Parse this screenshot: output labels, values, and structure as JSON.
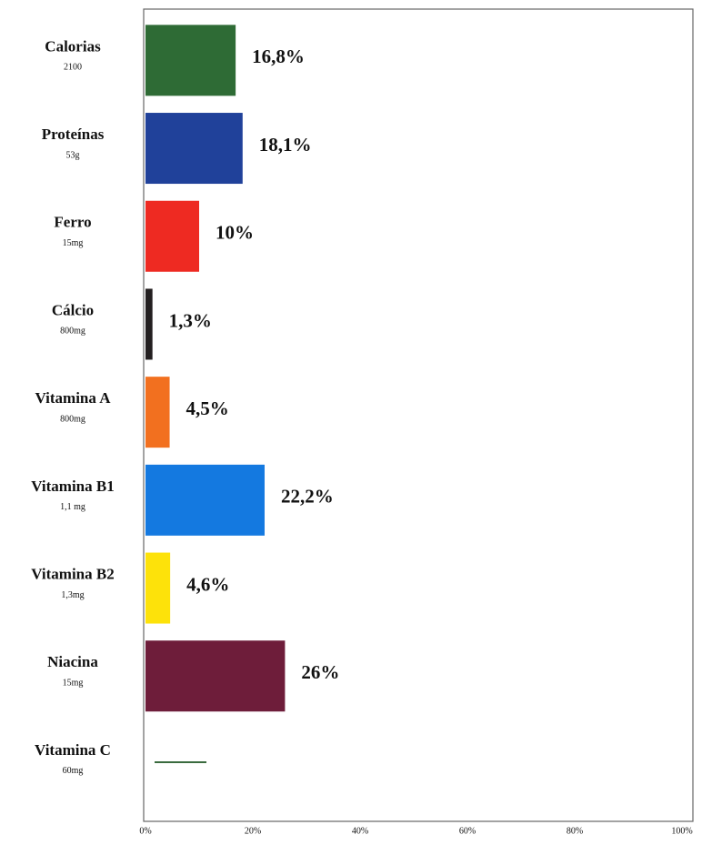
{
  "chart_data": {
    "type": "barh",
    "categories": [
      "Calorias",
      "Proteínas",
      "Ferro",
      "Cálcio",
      "Vitamina A",
      "Vitamina B1",
      "Vitamina B2",
      "Niacina",
      "Vitamina C"
    ],
    "sublabels": [
      "2100",
      "53g",
      "15mg",
      "800mg",
      "800mg",
      "1,1 mg",
      "1,3mg",
      "15mg",
      "60mg"
    ],
    "values": [
      16.8,
      18.1,
      10,
      1.3,
      4.5,
      22.2,
      4.6,
      26,
      null
    ],
    "value_labels": [
      "16,8%",
      "18,1%",
      "10%",
      "1,3%",
      "4,5%",
      "22,2%",
      "4,6%",
      "26%",
      null
    ],
    "colors": [
      "#2e6b35",
      "#20419a",
      "#ee2a22",
      "#231f20",
      "#f2701f",
      "#1479e0",
      "#fde20a",
      "#6e1d3a",
      "#2e6b35"
    ],
    "xlim": [
      0,
      100
    ],
    "xticks": [
      {
        "value": 0,
        "label": "0%"
      },
      {
        "value": 20,
        "label": "20%"
      },
      {
        "value": 40,
        "label": "40%"
      },
      {
        "value": 60,
        "label": "60%"
      },
      {
        "value": 80,
        "label": "80%"
      },
      {
        "value": 100,
        "label": "100%"
      }
    ]
  }
}
